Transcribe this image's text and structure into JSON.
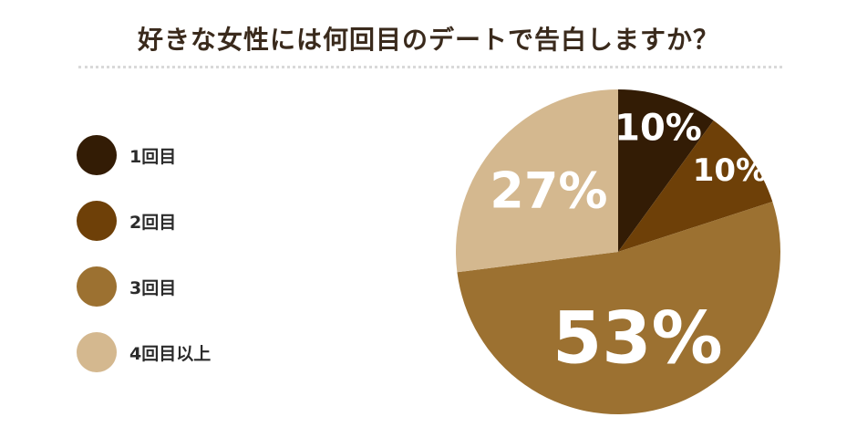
{
  "title": "好きな女性には何回目のデートで告白しますか？",
  "chart_data": {
    "type": "pie",
    "title": "好きな女性には何回目のデートで告白しますか？",
    "categories": [
      "1回目",
      "2回目",
      "3回目",
      "4回目以上"
    ],
    "values": [
      10,
      10,
      53,
      27
    ],
    "labels": [
      "10%",
      "10%",
      "53%",
      "27%"
    ],
    "colors": [
      "#331c05",
      "#6e4008",
      "#9c7131",
      "#d4b88f"
    ],
    "legend": "left"
  }
}
